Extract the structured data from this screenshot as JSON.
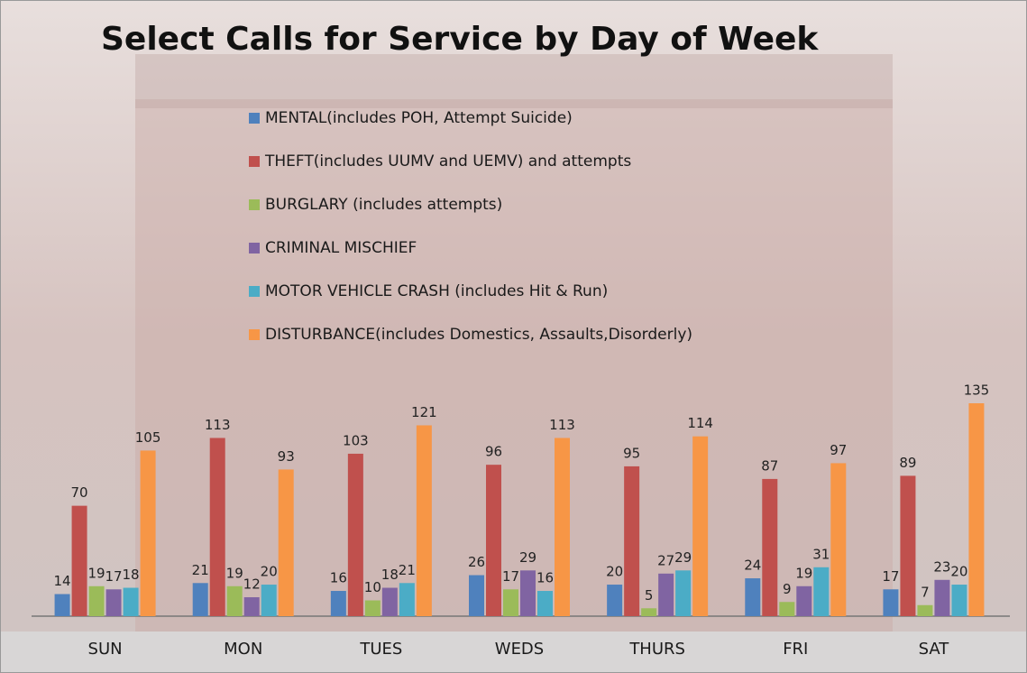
{
  "chart_data": {
    "type": "bar",
    "title": "Select Calls for Service by Day of Week",
    "categories": [
      "SUN",
      "MON",
      "TUES",
      "WEDS",
      "THURS",
      "FRI",
      "SAT"
    ],
    "series": [
      {
        "name": "MENTAL(includes POH, Attempt Suicide)",
        "color": "#4f81bd",
        "values": [
          14,
          21,
          16,
          26,
          20,
          24,
          17
        ]
      },
      {
        "name": "THEFT(includes UUMV and UEMV) and attempts",
        "color": "#c0504d",
        "values": [
          70,
          113,
          103,
          96,
          95,
          87,
          89
        ]
      },
      {
        "name": "BURGLARY (includes attempts)",
        "color": "#9bbb59",
        "values": [
          19,
          19,
          10,
          17,
          5,
          9,
          7
        ]
      },
      {
        "name": "CRIMINAL MISCHIEF",
        "color": "#8064a2",
        "values": [
          17,
          12,
          18,
          29,
          27,
          19,
          23
        ]
      },
      {
        "name": "MOTOR VEHICLE CRASH (includes Hit & Run)",
        "color": "#4bacc6",
        "values": [
          18,
          20,
          21,
          16,
          29,
          31,
          20
        ]
      },
      {
        "name": "DISTURBANCE(includes Domestics, Assaults,Disorderly)",
        "color": "#f79646",
        "values": [
          105,
          93,
          121,
          113,
          114,
          97,
          135
        ]
      }
    ]
  }
}
